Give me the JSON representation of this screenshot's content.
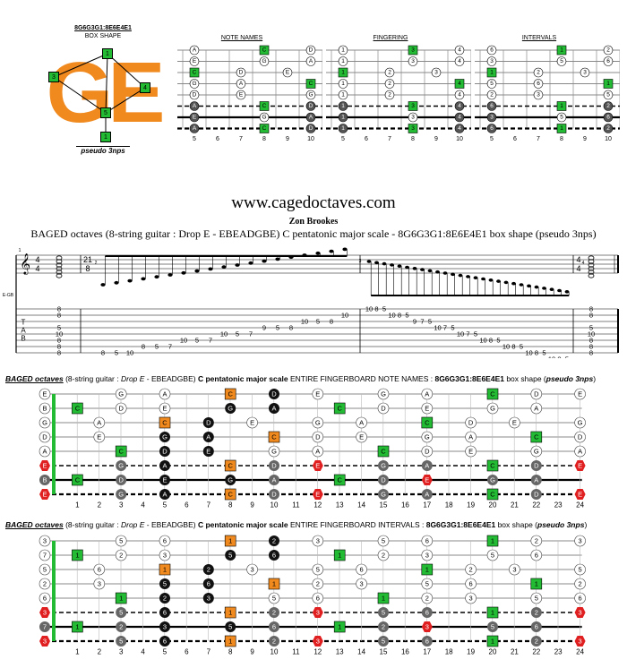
{
  "box_shape": {
    "code": "8G6G3G1:8E6E4E1",
    "label": "BOX SHAPE",
    "subtitle": "pseudo 3nps",
    "letters": "GE",
    "markers": [
      "1",
      "3",
      "4",
      "5",
      "1"
    ]
  },
  "mini_diagrams": [
    {
      "title": "NOTE NAMES",
      "type": "notes"
    },
    {
      "title": "FINGERING",
      "type": "fingers"
    },
    {
      "title": "INTERVALS",
      "type": "intervals"
    }
  ],
  "mini_fret_numbers": [
    "5",
    "6",
    "7",
    "8",
    "9",
    "10"
  ],
  "site": "www.cagedoctaves.com",
  "author": "Zon Brookes",
  "description": "BAGED octaves (8-string guitar : Drop E - EBEADGBE) C pentatonic major scale - 8G6G3G1:8E6E4E1 box shape (pseudo 3nps)",
  "score": {
    "side_label": "E-GB",
    "time_sig_1": "4/4",
    "time_sig_2": "21/8",
    "time_sig_3": "4/4",
    "measure_numbers": [
      "1",
      "2",
      "3",
      "4"
    ],
    "tab_letters": [
      "T",
      "A",
      "B"
    ],
    "tab_m1": [
      "8",
      "8",
      "5",
      "10",
      "8",
      "8",
      "8"
    ],
    "tab_m2_high": [
      "8",
      "5",
      "10",
      "8",
      "5",
      "7",
      "10",
      "5",
      "7",
      "10",
      "5",
      "7",
      "9",
      "5",
      "8",
      "10",
      "5",
      "8",
      "10"
    ],
    "tab_m3": [
      "10",
      "8",
      "5",
      "10",
      "8",
      "5",
      "9",
      "7",
      "5",
      "10",
      "7",
      "5",
      "10",
      "7",
      "5",
      "10",
      "8",
      "5",
      "10",
      "8",
      "5",
      "10",
      "8",
      "5",
      "10",
      "8",
      "5"
    ],
    "tab_m4": [
      "8",
      "8",
      "5",
      "10",
      "8",
      "8",
      "8"
    ]
  },
  "fb_notes": {
    "pre": "BAGED octaves",
    "mid1": " (8-string guitar : ",
    "drop": "Drop E",
    "mid2": " - EBEADGBE) ",
    "scale": "C pentatonic major scale",
    "mid3": " ENTIRE FINGERBOARD NOTE NAMES : ",
    "shape": "8G6G3G1:8E6E4E1",
    "mid4": " box shape (",
    "tail": "pseudo 3nps",
    "end": ")"
  },
  "fb_intervals": {
    "pre": "BAGED octaves",
    "mid1": " (8-string guitar : ",
    "drop": "Drop E",
    "mid2": " - EBEADGBE) ",
    "scale": "C pentatonic major scale",
    "mid3": " ENTIRE FINGERBOARD INTERVALS : ",
    "shape": "8G6G3G1:8E6E4E1",
    "mid4": " box shape (",
    "tail": "pseudo 3nps",
    "end": ")"
  },
  "open_notes": [
    "E",
    "B",
    "G",
    "D",
    "A",
    "E",
    "B",
    "E"
  ],
  "open_intervals": [
    "3",
    "7",
    "5",
    "2",
    "6",
    "3",
    "7",
    "3"
  ],
  "fret_numbers": [
    "1",
    "2",
    "3",
    "4",
    "5",
    "6",
    "7",
    "8",
    "9",
    "10",
    "11",
    "12",
    "13",
    "14",
    "15",
    "16",
    "17",
    "18",
    "19",
    "20",
    "21",
    "22",
    "23",
    "24"
  ],
  "colors": {
    "green": "#22bb33",
    "orange": "#f08a1e",
    "red": "#e02020",
    "black": "#111111",
    "gray": "#666666"
  }
}
